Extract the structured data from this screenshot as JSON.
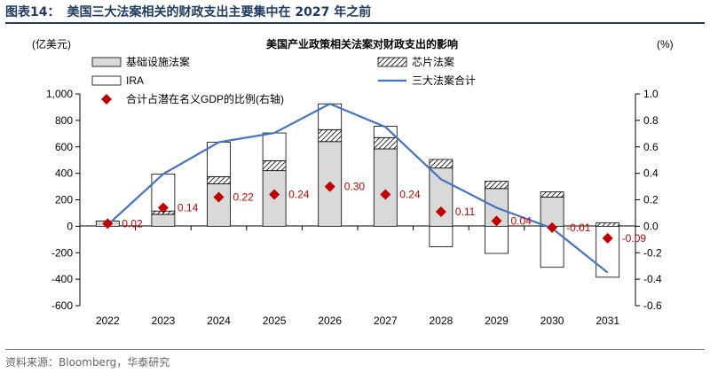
{
  "figure": {
    "label": "图表14：",
    "title": "美国三大法案相关的财政支出主要集中在 2027 年之前",
    "source": "资料来源：Bloomberg，华泰研究"
  },
  "chart_data": {
    "type": "bar",
    "title": "美国产业政策相关法案对财政支出的影响",
    "ylabel": "(亿美元)",
    "y2label": "(%)",
    "categories": [
      "2022",
      "2023",
      "2024",
      "2025",
      "2026",
      "2027",
      "2028",
      "2029",
      "2030",
      "2031"
    ],
    "ylim": [
      -600,
      1000
    ],
    "yticks": [
      -600,
      -400,
      -200,
      0,
      200,
      400,
      600,
      800,
      1000
    ],
    "ytick_labels": [
      "-600",
      "-400",
      "-200",
      "0",
      "200",
      "400",
      "600",
      "800",
      "1,000"
    ],
    "y2lim": [
      -0.6,
      1.0
    ],
    "y2ticks": [
      -0.6,
      -0.4,
      -0.2,
      0.0,
      0.2,
      0.4,
      0.6,
      0.8,
      1.0
    ],
    "y2tick_labels": [
      "-0.6",
      "-0.4",
      "-0.2",
      "0.0",
      "0.2",
      "0.4",
      "0.6",
      "0.8",
      "1.0"
    ],
    "series": [
      {
        "name": "基础设施法案",
        "kind": "stacked-bar",
        "color": "#d9d9d9",
        "values": [
          40,
          90,
          320,
          420,
          640,
          585,
          440,
          285,
          220,
          0
        ]
      },
      {
        "name": "芯片法案",
        "kind": "stacked-bar",
        "pattern": "hatch",
        "values": [
          0,
          25,
          55,
          75,
          90,
          85,
          65,
          55,
          40,
          25
        ]
      },
      {
        "name": "IRA",
        "kind": "stacked-bar",
        "color": "#ffffff",
        "values": [
          0,
          280,
          260,
          210,
          195,
          85,
          0,
          0,
          0,
          0
        ]
      },
      {
        "name": "IRA",
        "kind": "stacked-bar-negative",
        "color": "#ffffff",
        "values": [
          0,
          0,
          0,
          0,
          0,
          0,
          -155,
          -205,
          -310,
          -385
        ]
      },
      {
        "name": "三大法案合计",
        "kind": "line",
        "axis": "left",
        "color": "#4472c4",
        "values": [
          10,
          395,
          635,
          705,
          925,
          750,
          355,
          140,
          -15,
          -350
        ]
      },
      {
        "name": "合计占潜在名义GDP的比例(右轴)",
        "kind": "scatter",
        "axis": "right",
        "color": "#c00000",
        "marker": "diamond",
        "values": [
          0.02,
          0.14,
          0.22,
          0.24,
          0.3,
          0.24,
          0.11,
          0.04,
          -0.01,
          -0.09
        ],
        "labels": [
          "0.02",
          "0.14",
          "0.22",
          "0.24",
          "0.30",
          "0.24",
          "0.11",
          "0.04",
          "-0.01",
          "-0.09"
        ]
      }
    ],
    "legend": [
      {
        "label": "基础设施法案",
        "swatch": "gray-box"
      },
      {
        "label": "芯片法案",
        "swatch": "hatch-box"
      },
      {
        "label": "IRA",
        "swatch": "white-box"
      },
      {
        "label": "三大法案合计",
        "swatch": "blue-line"
      },
      {
        "label": "合计占潜在名义GDP的比例(右轴)",
        "swatch": "red-diamond"
      }
    ]
  }
}
